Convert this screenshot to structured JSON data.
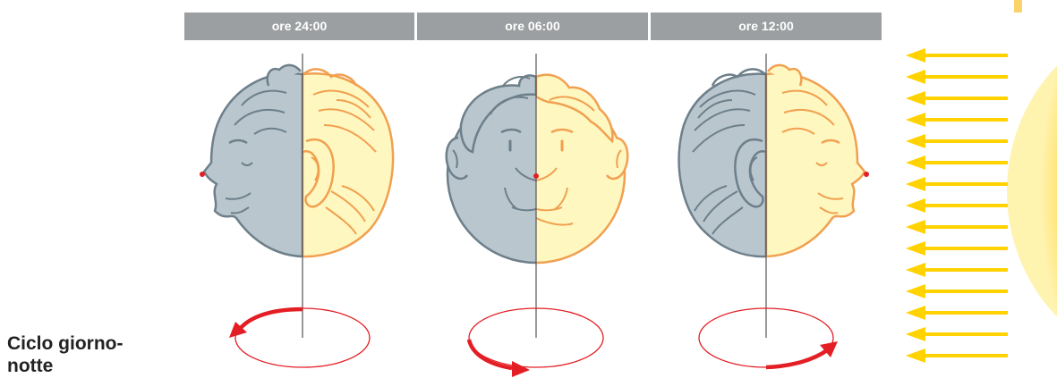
{
  "title": "Ciclo giorno-notte",
  "headers": [
    "ore 24:00",
    "ore 06:00",
    "ore 12:00"
  ],
  "colors": {
    "header_bg": "#9c9fa1",
    "night": "#b9c6ce",
    "day": "#fff7c0",
    "night_stroke": "#6d7f8a",
    "day_stroke": "#f0a050",
    "rotation": "#e31e24",
    "sun_rays": "#ffd200",
    "sun": "#f7b70f"
  },
  "icons": [
    "head-globe",
    "rotation-arrow",
    "sun",
    "sun-ray-arrow"
  ]
}
